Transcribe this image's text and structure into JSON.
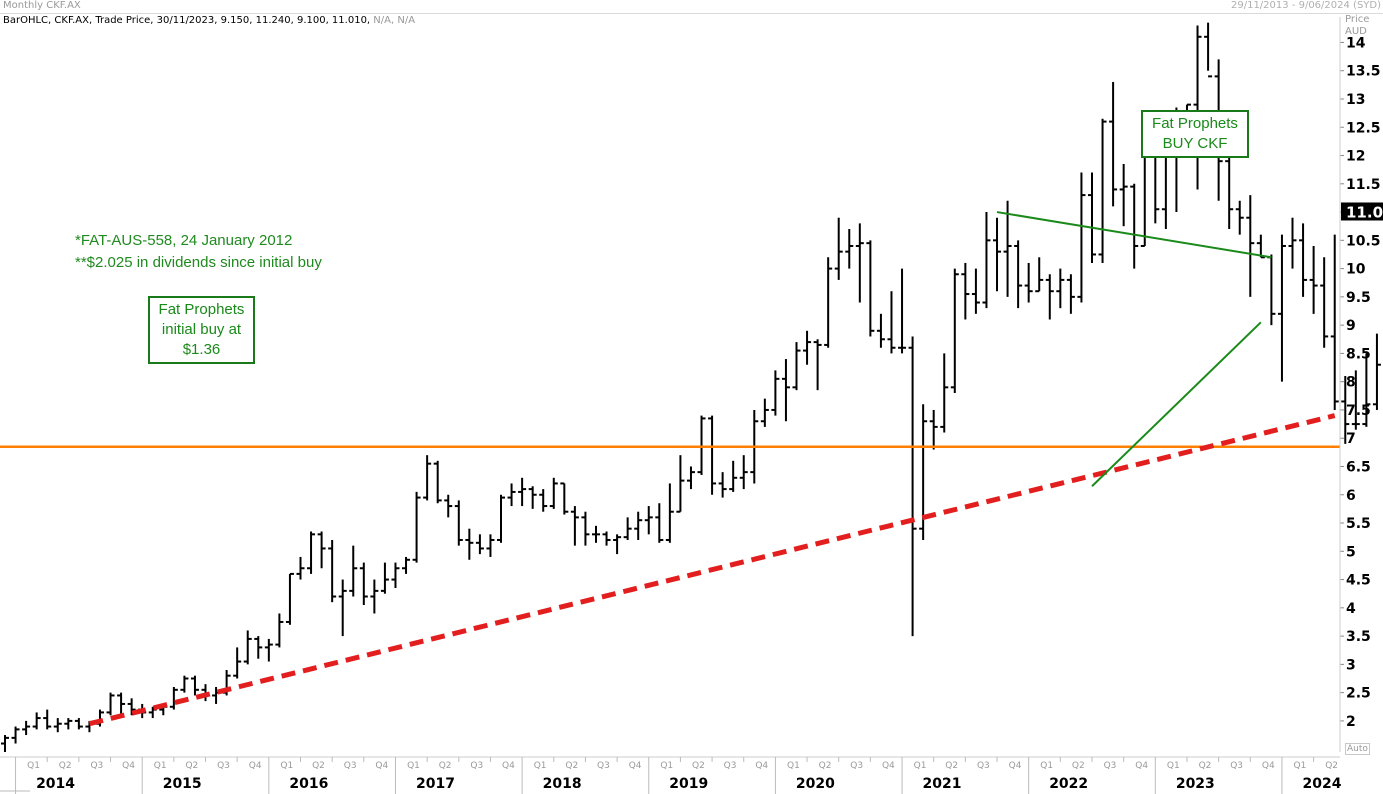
{
  "header": {
    "title": "Monthly CKF.AX",
    "date_range": "29/11/2013 - 9/06/2024 (SYD)",
    "info": "BarOHLC, CKF.AX, Trade Price, 30/11/2023, 9.150, 11.240, 9.100, 11.010,",
    "info_na": "N/A, N/A"
  },
  "axis": {
    "price_label": "Price",
    "currency_label": "AUD",
    "auto_label": "Auto",
    "last_price_label": "11.01"
  },
  "annotations": {
    "note_line1": "*FAT-AUS-558, 24 January 2012",
    "note_line2": "**$2.025 in dividends since initial buy",
    "initial_box": [
      "Fat Prophets",
      "initial buy at",
      "$1.36"
    ],
    "buy_box": [
      "Fat Prophets",
      "BUY CKF"
    ]
  },
  "colors": {
    "bars": "#000000",
    "support_line": "#ff8000",
    "trend_dashed": "#e31e1e",
    "triangle_lines": "#1a8a1a",
    "grid": "#d0d0d0"
  },
  "chart_data": {
    "type": "ohlc",
    "title": "Monthly CKF.AX",
    "ylabel": "Price AUD",
    "ylim": [
      1.45,
      14.45
    ],
    "yticks": [
      2,
      2.5,
      3,
      3.5,
      4,
      4.5,
      5,
      5.5,
      6,
      6.5,
      7,
      7.5,
      8,
      8.5,
      9,
      9.5,
      10,
      10.5,
      11,
      11.5,
      12,
      12.5,
      13,
      13.5,
      14
    ],
    "xlim": [
      "2013-12",
      "2024-06"
    ],
    "years": [
      "2014",
      "2015",
      "2016",
      "2017",
      "2018",
      "2019",
      "2020",
      "2021",
      "2022",
      "2023",
      "2024"
    ],
    "quarters": [
      "Q1",
      "Q2",
      "Q3",
      "Q4"
    ],
    "last_price": 11.01,
    "series": [
      {
        "values": [
          [
            1.6,
            1.75,
            1.45,
            1.7
          ],
          [
            1.7,
            1.9,
            1.6,
            1.85
          ],
          [
            1.85,
            2.0,
            1.75,
            1.9
          ],
          [
            1.9,
            2.15,
            1.85,
            2.05
          ],
          [
            2.05,
            2.2,
            1.85,
            1.9
          ],
          [
            1.9,
            2.05,
            1.8,
            1.95
          ],
          [
            1.95,
            2.05,
            1.85,
            2.0
          ],
          [
            2.0,
            2.05,
            1.85,
            1.9
          ],
          [
            1.9,
            2.0,
            1.8,
            1.95
          ],
          [
            1.95,
            2.2,
            1.9,
            2.15
          ],
          [
            2.15,
            2.5,
            2.1,
            2.45
          ],
          [
            2.45,
            2.5,
            2.1,
            2.3
          ],
          [
            2.3,
            2.4,
            2.1,
            2.2
          ],
          [
            2.2,
            2.3,
            2.05,
            2.15
          ],
          [
            2.15,
            2.25,
            2.05,
            2.2
          ],
          [
            2.2,
            2.3,
            2.1,
            2.25
          ],
          [
            2.25,
            2.6,
            2.2,
            2.55
          ],
          [
            2.55,
            2.8,
            2.5,
            2.75
          ],
          [
            2.75,
            2.8,
            2.45,
            2.55
          ],
          [
            2.55,
            2.65,
            2.35,
            2.45
          ],
          [
            2.45,
            2.6,
            2.3,
            2.5
          ],
          [
            2.5,
            2.9,
            2.45,
            2.8
          ],
          [
            2.8,
            3.3,
            2.75,
            3.05
          ],
          [
            3.05,
            3.6,
            3.0,
            3.45
          ],
          [
            3.45,
            3.5,
            3.1,
            3.3
          ],
          [
            3.3,
            3.45,
            3.05,
            3.35
          ],
          [
            3.35,
            3.9,
            3.3,
            3.75
          ],
          [
            3.75,
            4.6,
            3.7,
            4.6
          ],
          [
            4.6,
            4.9,
            4.5,
            4.7
          ],
          [
            4.7,
            5.35,
            4.6,
            5.3
          ],
          [
            5.3,
            5.35,
            4.7,
            5.05
          ],
          [
            5.05,
            5.2,
            4.1,
            4.2
          ],
          [
            4.2,
            4.5,
            3.5,
            4.3
          ],
          [
            4.3,
            5.1,
            4.2,
            4.7
          ],
          [
            4.7,
            4.8,
            4.05,
            4.2
          ],
          [
            4.2,
            4.5,
            3.9,
            4.3
          ],
          [
            4.3,
            4.8,
            4.25,
            4.5
          ],
          [
            4.5,
            4.8,
            4.35,
            4.7
          ],
          [
            4.7,
            4.9,
            4.6,
            4.85
          ],
          [
            4.85,
            6.05,
            4.8,
            5.95
          ],
          [
            5.95,
            6.7,
            5.9,
            6.55
          ],
          [
            6.55,
            6.6,
            5.85,
            5.9
          ],
          [
            5.9,
            6.0,
            5.6,
            5.8
          ],
          [
            5.8,
            5.9,
            5.1,
            5.2
          ],
          [
            5.2,
            5.4,
            4.85,
            5.15
          ],
          [
            5.15,
            5.3,
            4.95,
            5.05
          ],
          [
            5.05,
            5.3,
            4.9,
            5.2
          ],
          [
            5.2,
            6.0,
            5.15,
            5.95
          ],
          [
            5.95,
            6.2,
            5.8,
            6.05
          ],
          [
            6.05,
            6.3,
            5.8,
            6.1
          ],
          [
            6.1,
            6.15,
            5.75,
            6.0
          ],
          [
            6.0,
            6.1,
            5.7,
            5.8
          ],
          [
            5.8,
            6.3,
            5.75,
            6.2
          ],
          [
            6.2,
            6.2,
            5.65,
            5.7
          ],
          [
            5.7,
            5.8,
            5.1,
            5.6
          ],
          [
            5.6,
            5.7,
            5.1,
            5.3
          ],
          [
            5.3,
            5.45,
            5.15,
            5.3
          ],
          [
            5.3,
            5.35,
            5.1,
            5.2
          ],
          [
            5.2,
            5.3,
            4.95,
            5.25
          ],
          [
            5.25,
            5.6,
            5.2,
            5.4
          ],
          [
            5.4,
            5.7,
            5.2,
            5.55
          ],
          [
            5.55,
            5.8,
            5.3,
            5.6
          ],
          [
            5.6,
            5.85,
            5.15,
            5.2
          ],
          [
            5.2,
            6.2,
            5.15,
            5.7
          ],
          [
            5.7,
            6.7,
            5.7,
            6.25
          ],
          [
            6.25,
            6.5,
            6.1,
            6.4
          ],
          [
            6.4,
            7.4,
            6.35,
            7.35
          ],
          [
            7.35,
            7.4,
            6.0,
            6.2
          ],
          [
            6.2,
            6.4,
            5.95,
            6.1
          ],
          [
            6.1,
            6.6,
            6.05,
            6.3
          ],
          [
            6.3,
            6.7,
            6.1,
            6.4
          ],
          [
            6.4,
            7.5,
            6.2,
            7.3
          ],
          [
            7.3,
            7.7,
            7.2,
            7.5
          ],
          [
            7.5,
            8.2,
            7.4,
            8.05
          ],
          [
            8.05,
            8.4,
            7.3,
            7.9
          ],
          [
            7.9,
            8.7,
            7.85,
            8.55
          ],
          [
            8.55,
            8.9,
            8.3,
            8.7
          ],
          [
            8.7,
            8.75,
            7.85,
            8.65
          ],
          [
            8.65,
            10.2,
            8.6,
            10.0
          ],
          [
            10.0,
            10.9,
            9.8,
            10.3
          ],
          [
            10.3,
            10.7,
            10.0,
            10.4
          ],
          [
            10.4,
            10.8,
            9.4,
            10.45
          ],
          [
            10.45,
            10.5,
            8.8,
            8.9
          ],
          [
            8.9,
            9.2,
            8.6,
            8.75
          ],
          [
            8.75,
            9.6,
            8.5,
            8.6
          ],
          [
            8.6,
            10.0,
            8.5,
            8.6
          ],
          [
            8.6,
            8.8,
            3.5,
            5.4
          ],
          [
            5.4,
            7.6,
            5.2,
            7.3
          ],
          [
            7.3,
            7.5,
            6.8,
            7.2
          ],
          [
            7.2,
            8.5,
            7.1,
            7.9
          ],
          [
            7.9,
            10.0,
            7.8,
            9.9
          ],
          [
            9.9,
            10.1,
            9.1,
            9.55
          ],
          [
            9.55,
            10.0,
            9.2,
            9.4
          ],
          [
            9.4,
            11.0,
            9.3,
            10.5
          ],
          [
            10.5,
            10.9,
            9.6,
            10.3
          ],
          [
            10.3,
            11.2,
            9.5,
            10.4
          ],
          [
            10.4,
            10.5,
            9.3,
            9.7
          ],
          [
            9.7,
            10.1,
            9.4,
            9.6
          ],
          [
            9.6,
            10.2,
            9.6,
            9.8
          ],
          [
            9.8,
            9.9,
            9.1,
            9.6
          ],
          [
            9.6,
            10.0,
            9.3,
            9.8
          ],
          [
            9.8,
            9.9,
            9.2,
            9.5
          ],
          [
            9.5,
            11.7,
            9.4,
            11.3
          ],
          [
            11.3,
            11.7,
            10.1,
            10.25
          ],
          [
            10.25,
            12.65,
            10.1,
            12.6
          ],
          [
            12.6,
            13.3,
            11.1,
            11.4
          ],
          [
            11.4,
            11.85,
            10.75,
            11.45
          ],
          [
            11.45,
            11.5,
            10.0,
            10.4
          ],
          [
            10.4,
            12.3,
            10.4,
            12.25
          ],
          [
            12.25,
            12.3,
            10.8,
            11.05
          ],
          [
            11.05,
            12.2,
            10.7,
            12.05
          ],
          [
            12.05,
            12.85,
            11.0,
            12.5
          ],
          [
            12.5,
            12.9,
            12.1,
            12.9
          ],
          [
            12.9,
            14.3,
            11.4,
            14.1
          ],
          [
            14.1,
            14.35,
            13.5,
            13.4
          ],
          [
            13.4,
            13.7,
            11.2,
            11.9
          ],
          [
            11.9,
            12.1,
            10.7,
            11.05
          ],
          [
            11.05,
            11.2,
            10.6,
            10.9
          ],
          [
            10.9,
            11.3,
            9.5,
            10.45
          ],
          [
            10.45,
            10.6,
            10.2,
            10.2
          ],
          [
            10.2,
            10.25,
            9.0,
            9.2
          ],
          [
            9.2,
            10.6,
            8.0,
            10.4
          ],
          [
            10.4,
            10.9,
            10.0,
            10.5
          ],
          [
            10.5,
            10.8,
            9.5,
            9.8
          ],
          [
            9.8,
            10.4,
            9.2,
            9.7
          ],
          [
            9.7,
            10.2,
            8.6,
            8.8
          ],
          [
            8.8,
            10.6,
            7.5,
            7.65
          ],
          [
            7.65,
            8.1,
            6.9,
            7.25
          ],
          [
            7.25,
            8.2,
            7.15,
            7.25
          ],
          [
            7.25,
            8.5,
            7.2,
            7.6
          ],
          [
            7.6,
            8.85,
            7.5,
            8.3
          ],
          [
            8.3,
            8.9,
            8.1,
            8.4
          ],
          [
            8.4,
            8.6,
            8.1,
            8.3
          ],
          [
            8.3,
            9.0,
            8.2,
            8.6
          ],
          [
            8.6,
            8.85,
            8.2,
            8.4
          ],
          [
            8.4,
            9.6,
            7.5,
            9.9
          ],
          [
            9.9,
            10.0,
            9.5,
            9.95
          ],
          [
            9.95,
            10.4,
            9.4,
            10.2
          ],
          [
            10.2,
            10.25,
            9.5,
            10.1
          ],
          [
            10.1,
            10.1,
            9.1,
            9.6
          ],
          [
            9.6,
            9.8,
            9.05,
            9.15
          ],
          [
            9.15,
            11.24,
            9.1,
            11.01
          ]
        ]
      }
    ],
    "support_level": 6.85,
    "trendlines": [
      {
        "style": "dashed",
        "from": [
          "2014-08",
          1.95
        ],
        "to": [
          "2024-06",
          7.4
        ]
      },
      {
        "style": "solid",
        "from": [
          "2021-10",
          11.0
        ],
        "to": [
          "2023-12",
          10.2
        ]
      },
      {
        "style": "solid",
        "from": [
          "2022-07",
          6.15
        ],
        "to": [
          "2023-11",
          9.05
        ]
      }
    ]
  }
}
